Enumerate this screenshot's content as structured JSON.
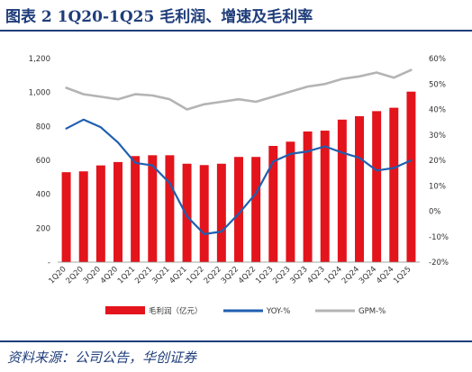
{
  "figure_title": "图表 2   1Q20-1Q25 毛利润、增速及毛利率",
  "source": "资料来源：公司公告，华创证券",
  "colors": {
    "bar": "#e3141b",
    "yoy": "#1f5fb0",
    "gpm": "#b4b4b4",
    "title": "#1f3d7a"
  },
  "chart_data": {
    "type": "bar",
    "categories": [
      "1Q20",
      "2Q20",
      "3Q20",
      "4Q20",
      "1Q21",
      "2Q21",
      "3Q21",
      "4Q21",
      "1Q22",
      "2Q22",
      "3Q22",
      "4Q22",
      "1Q23",
      "2Q23",
      "3Q23",
      "4Q23",
      "1Q24",
      "2Q24",
      "3Q24",
      "4Q24",
      "1Q25"
    ],
    "series": [
      {
        "name": "毛利润（亿元）",
        "type": "bar",
        "axis": "left",
        "values": [
          530,
          535,
          570,
          590,
          625,
          630,
          630,
          580,
          572,
          580,
          620,
          620,
          685,
          710,
          770,
          775,
          840,
          860,
          890,
          910,
          1005
        ]
      },
      {
        "name": "YOY-%",
        "type": "line",
        "axis": "right",
        "values": [
          32.5,
          36,
          33,
          27,
          19,
          18,
          11,
          -2,
          -9,
          -8,
          -1,
          7,
          19.5,
          22.5,
          23.5,
          25.5,
          23,
          21,
          16,
          17,
          20
        ]
      },
      {
        "name": "GPM-%",
        "type": "line",
        "axis": "right",
        "values": [
          48.5,
          46,
          45,
          44,
          46,
          45.5,
          44,
          40,
          42,
          43,
          44,
          43,
          45,
          47,
          49,
          50,
          52,
          53,
          54.5,
          52.5,
          55.5
        ]
      }
    ],
    "left_axis": {
      "min": 0,
      "max": 1200,
      "step": 200,
      "ticks": [
        "-",
        "200",
        "400",
        "600",
        "800",
        "1,000",
        "1,200"
      ]
    },
    "right_axis": {
      "min": -20,
      "max": 60,
      "step": 10,
      "ticks": [
        "-20%",
        "-10%",
        "0%",
        "10%",
        "20%",
        "30%",
        "40%",
        "50%",
        "60%"
      ]
    },
    "grid": false,
    "legend_position": "bottom"
  }
}
